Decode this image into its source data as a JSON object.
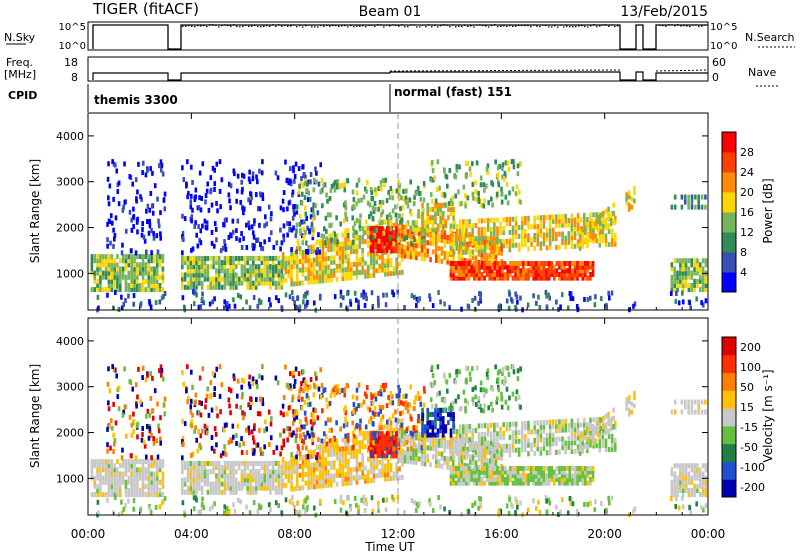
{
  "header": {
    "title": "TIGER (fitACF)",
    "beam": "Beam 01",
    "date": "13/Feb/2015"
  },
  "status_panels": {
    "nsky": {
      "label": "N.Sky",
      "ticks": [
        "10^5",
        "10^0"
      ]
    },
    "nsearch": {
      "label": "N.Search",
      "ticks": [
        "10^5",
        "10^0"
      ]
    },
    "freq": {
      "label1": "Freq.",
      "label2": "[MHz]",
      "ticks": [
        "18",
        "8"
      ]
    },
    "nave": {
      "label": "Nave",
      "ticks": [
        "60",
        "0"
      ]
    },
    "cpid": {
      "label": "CPID"
    }
  },
  "cpid_segments": [
    {
      "name": "themis 3300",
      "start_hour": 0
    },
    {
      "name": "normal (fast) 151",
      "start_hour": 12
    }
  ],
  "chart_data": [
    {
      "type": "heatmap",
      "name": "power",
      "ylabel": "Slant Range [km]",
      "ylim": [
        200,
        4500
      ],
      "yticks": [
        1000,
        2000,
        3000,
        4000
      ],
      "xlim": [
        0,
        24
      ],
      "colorbar": {
        "label": "Power [dB]",
        "ticks": [
          "4",
          "8",
          "12",
          "16",
          "20",
          "24",
          "28"
        ],
        "colors": [
          "#0000ff",
          "#3a4fb5",
          "#2e8b57",
          "#77b55a",
          "#ffd700",
          "#ff8c00",
          "#ff4000",
          "#ff0000"
        ]
      }
    },
    {
      "type": "heatmap",
      "name": "velocity",
      "ylabel": "Slant Range [km]",
      "ylim": [
        200,
        4500
      ],
      "yticks": [
        1000,
        2000,
        3000,
        4000
      ],
      "xlim": [
        0,
        24
      ],
      "xlabel": "Time UT",
      "xticks": [
        "00:00",
        "04:00",
        "08:00",
        "12:00",
        "16:00",
        "20:00",
        "00:00"
      ],
      "colorbar": {
        "label": "Velocity [m s⁻¹]",
        "ticks": [
          "200",
          "100",
          "50",
          "15",
          "-15",
          "-50",
          "-100",
          "-200"
        ],
        "colors": [
          "#0000b0",
          "#2050d0",
          "#208040",
          "#66c040",
          "#c8c8c8",
          "#ffc000",
          "#ff8000",
          "#ff3000",
          "#e00000"
        ]
      }
    }
  ]
}
